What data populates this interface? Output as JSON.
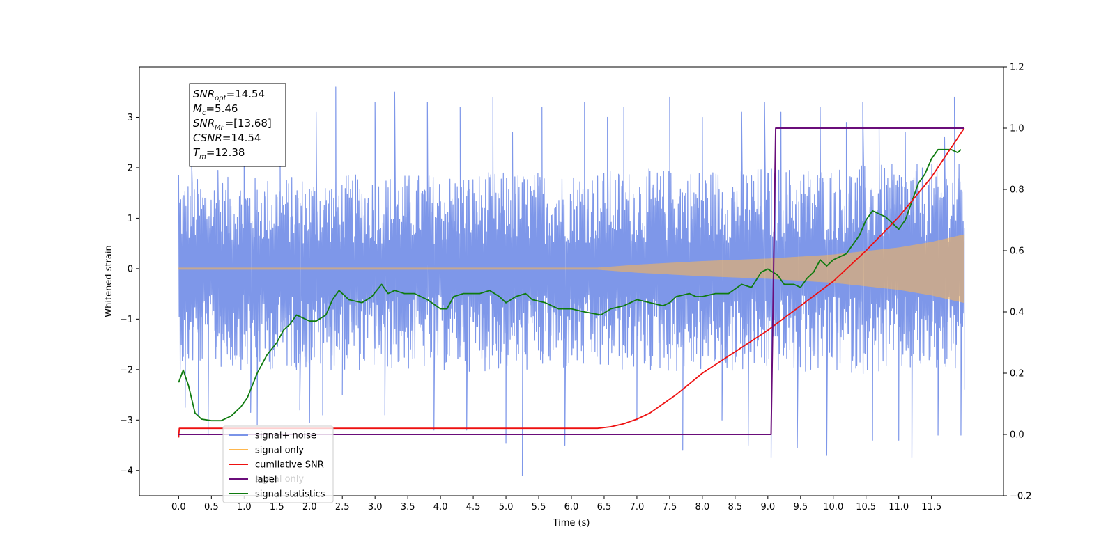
{
  "chart_data": {
    "type": "line",
    "xlabel": "Time (s)",
    "ylabel_left": "Whitened strain",
    "ylabel_right": "",
    "xlim": [
      -0.6,
      12.6
    ],
    "ylim_left": [
      -4.5,
      4.0
    ],
    "ylim_right": [
      -0.2,
      1.2
    ],
    "x_ticks": [
      "0.0",
      "0.5",
      "1.0",
      "1.5",
      "2.0",
      "2.5",
      "3.0",
      "3.5",
      "4.0",
      "4.5",
      "5.0",
      "5.5",
      "6.0",
      "6.5",
      "7.0",
      "7.5",
      "8.0",
      "8.5",
      "9.0",
      "9.5",
      "10.0",
      "10.5",
      "11.0",
      "11.5"
    ],
    "x_tick_values": [
      0,
      0.5,
      1,
      1.5,
      2,
      2.5,
      3,
      3.5,
      4,
      4.5,
      5,
      5.5,
      6,
      6.5,
      7,
      7.5,
      8,
      8.5,
      9,
      9.5,
      10,
      10.5,
      11,
      11.5
    ],
    "y_left_ticks": [
      "−4",
      "−3",
      "−2",
      "−1",
      "0",
      "1",
      "2",
      "3"
    ],
    "y_left_tick_values": [
      -4,
      -3,
      -2,
      -1,
      0,
      1,
      2,
      3
    ],
    "y_right_ticks": [
      "−0.2",
      "0.0",
      "0.2",
      "0.4",
      "0.6",
      "0.8",
      "1.0",
      "1.2"
    ],
    "y_right_tick_values": [
      -0.2,
      0,
      0.2,
      0.4,
      0.6,
      0.8,
      1.0,
      1.2
    ],
    "grid": false,
    "legend_position": "lower-left",
    "annotation": {
      "lines": [
        {
          "base": "SNR",
          "sub": "opt",
          "value": "=14.54"
        },
        {
          "base": "M",
          "sub": "c",
          "value": "=5.46"
        },
        {
          "base": "SNR",
          "sub": "MF",
          "value": "=[13.68]"
        },
        {
          "base": "CSNR",
          "sub": "",
          "value": "=14.54"
        },
        {
          "base": "T",
          "sub": "m",
          "value": "=12.38"
        }
      ]
    },
    "legend": [
      {
        "label": "signal+ noise",
        "color": "#7a94e8"
      },
      {
        "label": "signal only",
        "color": "#ffb74d"
      },
      {
        "label": "cumilative SNR",
        "color": "#ee1111"
      },
      {
        "label": "label",
        "color": "#6a0d7a"
      },
      {
        "label": "signal statistics",
        "color": "#0f7b0f"
      }
    ],
    "legend_ghost_text": [
      "signal only"
    ],
    "series": [
      {
        "name": "signal+ noise",
        "axis": "left",
        "color": "#7a94e8",
        "kind": "noise",
        "x_range": [
          0,
          12.0
        ],
        "envelope_upper": [
          [
            0,
            1.8
          ],
          [
            12.0,
            2.1
          ]
        ],
        "envelope_lower": [
          [
            0,
            -2.0
          ],
          [
            12.0,
            -2.1
          ]
        ],
        "spikes": [
          [
            0.0,
            1.85
          ],
          [
            0.1,
            -2.75
          ],
          [
            0.2,
            2.1
          ],
          [
            0.3,
            -2.9
          ],
          [
            0.45,
            -3.3
          ],
          [
            0.6,
            1.95
          ],
          [
            1.0,
            2.45
          ],
          [
            1.1,
            -2.85
          ],
          [
            1.2,
            -3.1
          ],
          [
            1.55,
            2.2
          ],
          [
            1.85,
            -2.8
          ],
          [
            2.0,
            -3.05
          ],
          [
            2.1,
            3.1
          ],
          [
            2.2,
            -2.9
          ],
          [
            2.4,
            3.6
          ],
          [
            2.5,
            -2.5
          ],
          [
            3.0,
            3.3
          ],
          [
            3.15,
            -2.9
          ],
          [
            3.3,
            3.5
          ],
          [
            3.8,
            3.3
          ],
          [
            3.9,
            -3.2
          ],
          [
            4.3,
            3.2
          ],
          [
            4.4,
            -3.2
          ],
          [
            4.8,
            3.4
          ],
          [
            5.0,
            -3.45
          ],
          [
            5.1,
            2.7
          ],
          [
            5.25,
            -4.1
          ],
          [
            5.55,
            3.2
          ],
          [
            5.9,
            -3.5
          ],
          [
            6.2,
            3.3
          ],
          [
            6.55,
            3.0
          ],
          [
            6.8,
            3.2
          ],
          [
            7.0,
            -3.0
          ],
          [
            7.5,
            3.4
          ],
          [
            7.7,
            -3.6
          ],
          [
            8.0,
            3.0
          ],
          [
            8.3,
            -3.0
          ],
          [
            8.6,
            3.1
          ],
          [
            8.7,
            -3.5
          ],
          [
            8.95,
            3.3
          ],
          [
            9.05,
            -3.75
          ],
          [
            9.2,
            3.1
          ],
          [
            9.45,
            -3.55
          ],
          [
            9.8,
            3.2
          ],
          [
            9.9,
            -3.7
          ],
          [
            10.2,
            2.9
          ],
          [
            10.45,
            3.3
          ],
          [
            10.6,
            -3.4
          ],
          [
            10.7,
            2.8
          ],
          [
            11.0,
            -3.4
          ],
          [
            11.1,
            2.7
          ],
          [
            11.2,
            -3.75
          ],
          [
            11.6,
            -3.3
          ],
          [
            11.7,
            2.6
          ],
          [
            11.85,
            3.4
          ],
          [
            11.95,
            -3.3
          ],
          [
            12.0,
            -2.4
          ]
        ]
      },
      {
        "name": "signal only",
        "axis": "left",
        "color": "#ffb74d",
        "kind": "chirp",
        "amplitude_envelope": [
          [
            0,
            0.02
          ],
          [
            6.4,
            0.02
          ],
          [
            7.0,
            0.08
          ],
          [
            8.0,
            0.15
          ],
          [
            9.0,
            0.2
          ],
          [
            10.0,
            0.28
          ],
          [
            11.0,
            0.42
          ],
          [
            11.5,
            0.53
          ],
          [
            12.0,
            0.68
          ]
        ]
      },
      {
        "name": "cumilative SNR",
        "axis": "right",
        "color": "#ee1111",
        "x": [
          0,
          0.01,
          6.4,
          6.6,
          6.8,
          7.0,
          7.2,
          7.4,
          7.6,
          7.8,
          8.0,
          8.5,
          9.0,
          9.5,
          10.0,
          10.5,
          11.0,
          11.5,
          12.0
        ],
        "y": [
          -0.01,
          0.02,
          0.02,
          0.025,
          0.035,
          0.05,
          0.07,
          0.1,
          0.13,
          0.165,
          0.2,
          0.27,
          0.34,
          0.42,
          0.5,
          0.6,
          0.71,
          0.84,
          1.0
        ]
      },
      {
        "name": "label",
        "axis": "right",
        "color": "#6a0d7a",
        "x": [
          0,
          9.05,
          9.12,
          12.0
        ],
        "y": [
          0.0,
          0.0,
          1.0,
          1.0
        ]
      },
      {
        "name": "signal statistics",
        "axis": "right",
        "color": "#0f7b0f",
        "x": [
          0,
          0.07,
          0.15,
          0.25,
          0.35,
          0.5,
          0.65,
          0.8,
          0.95,
          1.05,
          1.2,
          1.35,
          1.5,
          1.6,
          1.7,
          1.8,
          1.9,
          2.0,
          2.1,
          2.25,
          2.35,
          2.45,
          2.6,
          2.8,
          2.95,
          3.1,
          3.2,
          3.3,
          3.45,
          3.6,
          3.8,
          4.0,
          4.1,
          4.2,
          4.35,
          4.5,
          4.6,
          4.75,
          4.9,
          5.0,
          5.15,
          5.3,
          5.4,
          5.6,
          5.8,
          6.0,
          6.2,
          6.45,
          6.6,
          6.8,
          7.0,
          7.2,
          7.4,
          7.5,
          7.6,
          7.8,
          7.9,
          8.0,
          8.2,
          8.4,
          8.6,
          8.75,
          8.9,
          9.0,
          9.15,
          9.25,
          9.4,
          9.5,
          9.6,
          9.7,
          9.8,
          9.9,
          10.0,
          10.1,
          10.2,
          10.3,
          10.4,
          10.5,
          10.6,
          10.7,
          10.8,
          10.9,
          11.0,
          11.1,
          11.2,
          11.3,
          11.4,
          11.5,
          11.6,
          11.7,
          11.8,
          11.9,
          11.95
        ],
        "y": [
          0.17,
          0.21,
          0.16,
          0.07,
          0.05,
          0.045,
          0.045,
          0.06,
          0.09,
          0.12,
          0.2,
          0.26,
          0.3,
          0.34,
          0.36,
          0.39,
          0.38,
          0.37,
          0.37,
          0.39,
          0.44,
          0.47,
          0.44,
          0.43,
          0.45,
          0.49,
          0.46,
          0.47,
          0.46,
          0.46,
          0.44,
          0.41,
          0.41,
          0.45,
          0.46,
          0.46,
          0.46,
          0.47,
          0.45,
          0.43,
          0.45,
          0.46,
          0.44,
          0.43,
          0.41,
          0.41,
          0.4,
          0.39,
          0.41,
          0.42,
          0.44,
          0.43,
          0.42,
          0.43,
          0.45,
          0.46,
          0.45,
          0.45,
          0.46,
          0.46,
          0.49,
          0.48,
          0.53,
          0.54,
          0.52,
          0.49,
          0.49,
          0.48,
          0.51,
          0.53,
          0.57,
          0.55,
          0.57,
          0.58,
          0.59,
          0.62,
          0.65,
          0.7,
          0.73,
          0.72,
          0.71,
          0.69,
          0.67,
          0.7,
          0.76,
          0.82,
          0.85,
          0.9,
          0.93,
          0.93,
          0.93,
          0.92,
          0.93
        ]
      }
    ]
  }
}
